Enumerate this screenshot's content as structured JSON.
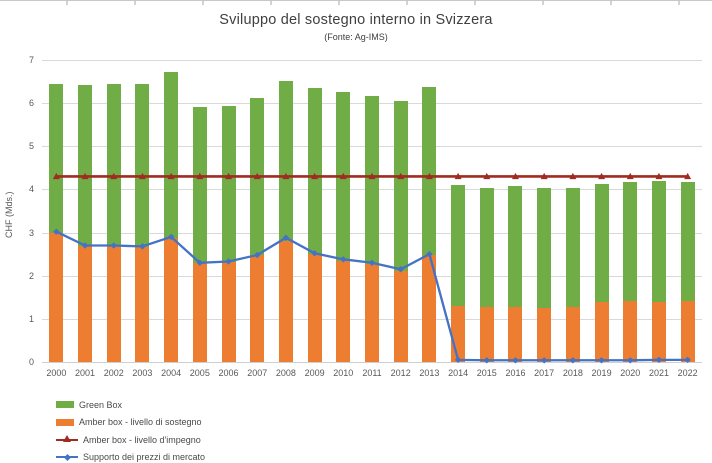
{
  "chart": {
    "title": "Sviluppo del sostegno interno in Svizzera",
    "subtitle": "(Fonte: Ag-IMS)",
    "ylabel": "CHF (Mds.)"
  },
  "chart_data": {
    "type": "bar",
    "subtype": "stacked-column-with-line-overlay",
    "title": "Sviluppo del sostegno interno in Svizzera",
    "subtitle": "(Fonte: Ag-IMS)",
    "ylabel": "CHF (Mds.)",
    "xlabel": "",
    "ylim": [
      0,
      7
    ],
    "yticks": [
      0,
      1,
      2,
      3,
      4,
      5,
      6,
      7
    ],
    "grid": true,
    "legend_position": "bottom-left",
    "categories": [
      "2000",
      "2001",
      "2002",
      "2003",
      "2004",
      "2005",
      "2006",
      "2007",
      "2008",
      "2009",
      "2010",
      "2011",
      "2012",
      "2013",
      "2014",
      "2015",
      "2016",
      "2017",
      "2018",
      "2019",
      "2020",
      "2021",
      "2022"
    ],
    "bar_series": [
      {
        "name": "Amber box - livello di sostegno",
        "color": "#ED7D31",
        "stack_order": 1,
        "values": [
          3.0,
          2.68,
          2.68,
          2.67,
          2.88,
          2.3,
          2.32,
          2.48,
          2.8,
          2.5,
          2.35,
          2.27,
          2.12,
          2.48,
          1.3,
          1.28,
          1.27,
          1.26,
          1.28,
          1.4,
          1.42,
          1.4,
          1.42
        ]
      },
      {
        "name": "Green Box",
        "color": "#70AD47",
        "stack_order": 2,
        "values": [
          3.45,
          3.75,
          3.77,
          3.78,
          3.84,
          3.6,
          3.61,
          3.65,
          3.72,
          3.86,
          3.91,
          3.89,
          3.93,
          3.89,
          2.8,
          2.75,
          2.81,
          2.77,
          2.75,
          2.73,
          2.75,
          2.8,
          2.76
        ]
      }
    ],
    "stack_totals": [
      6.45,
      6.43,
      6.45,
      6.45,
      6.72,
      5.9,
      5.93,
      6.13,
      6.52,
      6.36,
      6.26,
      6.16,
      6.05,
      6.37,
      4.1,
      4.03,
      4.08,
      4.03,
      4.03,
      4.13,
      4.17,
      4.2,
      4.18
    ],
    "line_series": [
      {
        "name": "Amber box - livello d'impegno",
        "color": "#A02B20",
        "marker": "triangle",
        "values": [
          4.3,
          4.3,
          4.3,
          4.3,
          4.3,
          4.3,
          4.3,
          4.3,
          4.3,
          4.3,
          4.3,
          4.3,
          4.3,
          4.3,
          4.3,
          4.3,
          4.3,
          4.3,
          4.3,
          4.3,
          4.3,
          4.3,
          4.3
        ]
      },
      {
        "name": "Supporto dei prezzi di mercato",
        "color": "#4472C4",
        "marker": "diamond",
        "values": [
          3.02,
          2.7,
          2.7,
          2.68,
          2.9,
          2.3,
          2.33,
          2.48,
          2.88,
          2.52,
          2.38,
          2.3,
          2.15,
          2.5,
          0.05,
          0.04,
          0.04,
          0.04,
          0.04,
          0.04,
          0.04,
          0.05,
          0.05
        ]
      }
    ],
    "legend": [
      {
        "label": "Green Box",
        "swatch": "box",
        "color": "#70AD47"
      },
      {
        "label": "Amber box - livello di sostegno",
        "swatch": "box",
        "color": "#ED7D31"
      },
      {
        "label": "Amber box - livello d'impegno",
        "swatch": "line-triangle",
        "color": "#A02B20"
      },
      {
        "label": "Supporto dei prezzi di mercato",
        "swatch": "line-diamond",
        "color": "#4472C4"
      }
    ]
  }
}
